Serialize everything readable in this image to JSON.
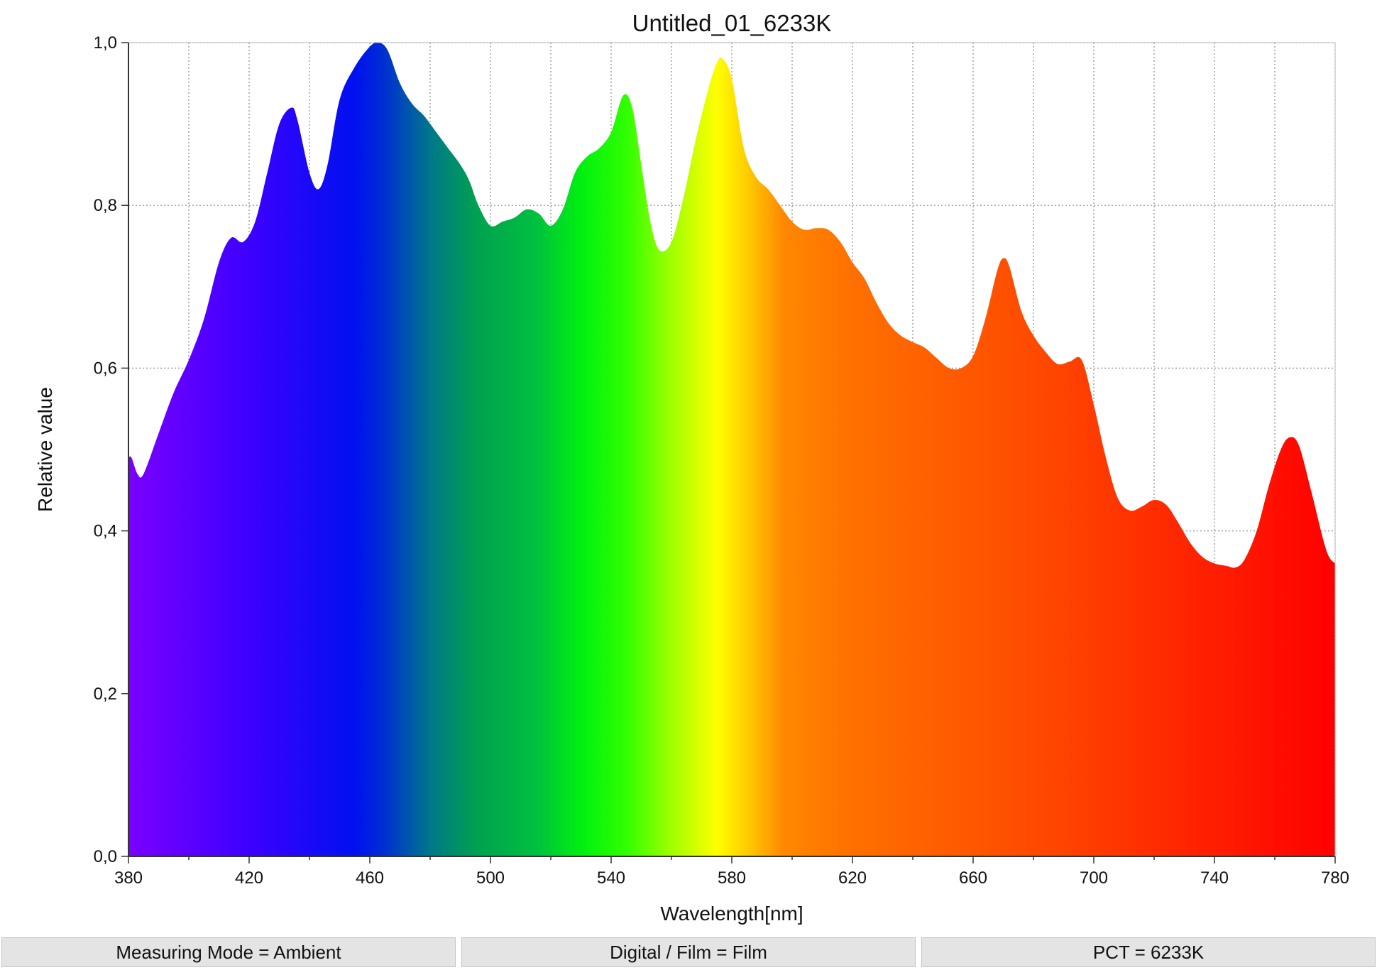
{
  "colors": {
    "gridline": "#8a8a8a",
    "axis": "#333333",
    "spectrum_stops": [
      {
        "nm": 380,
        "color": "#7a00ff"
      },
      {
        "nm": 420,
        "color": "#3d00ff"
      },
      {
        "nm": 455,
        "color": "#0010f0"
      },
      {
        "nm": 465,
        "color": "#0030d0"
      },
      {
        "nm": 480,
        "color": "#00788a"
      },
      {
        "nm": 495,
        "color": "#00a050"
      },
      {
        "nm": 515,
        "color": "#00c040"
      },
      {
        "nm": 530,
        "color": "#00f010"
      },
      {
        "nm": 545,
        "color": "#30ff00"
      },
      {
        "nm": 560,
        "color": "#a0ff00"
      },
      {
        "nm": 575,
        "color": "#ffff00"
      },
      {
        "nm": 585,
        "color": "#ffcc00"
      },
      {
        "nm": 597,
        "color": "#ff8800"
      },
      {
        "nm": 620,
        "color": "#ff7000"
      },
      {
        "nm": 680,
        "color": "#ff4a00"
      },
      {
        "nm": 740,
        "color": "#ff1e00"
      },
      {
        "nm": 780,
        "color": "#ff0000"
      }
    ]
  },
  "chart_data": {
    "type": "area",
    "title": "Untitled_01_6233K",
    "xlabel": "Wavelength[nm]",
    "ylabel": "Relative value",
    "xlim": [
      380,
      780
    ],
    "ylim": [
      0,
      1.0
    ],
    "grid": true,
    "x_ticks": [
      "380",
      "420",
      "460",
      "500",
      "540",
      "580",
      "620",
      "660",
      "700",
      "740",
      "780"
    ],
    "y_ticks": [
      "0,0",
      "0,2",
      "0,4",
      "0,6",
      "0,8",
      "1,0"
    ],
    "series": [
      {
        "points": [
          [
            380,
            0.49
          ],
          [
            381,
            0.49
          ],
          [
            383,
            0.47
          ],
          [
            385,
            0.47
          ],
          [
            390,
            0.52
          ],
          [
            395,
            0.57
          ],
          [
            400,
            0.61
          ],
          [
            405,
            0.66
          ],
          [
            410,
            0.73
          ],
          [
            414,
            0.76
          ],
          [
            418,
            0.755
          ],
          [
            422,
            0.78
          ],
          [
            426,
            0.84
          ],
          [
            430,
            0.9
          ],
          [
            434,
            0.92
          ],
          [
            436,
            0.905
          ],
          [
            440,
            0.84
          ],
          [
            443,
            0.82
          ],
          [
            446,
            0.85
          ],
          [
            450,
            0.93
          ],
          [
            455,
            0.97
          ],
          [
            460,
            0.995
          ],
          [
            463,
            1.0
          ],
          [
            466,
            0.99
          ],
          [
            470,
            0.95
          ],
          [
            474,
            0.925
          ],
          [
            478,
            0.91
          ],
          [
            482,
            0.89
          ],
          [
            486,
            0.87
          ],
          [
            490,
            0.85
          ],
          [
            493,
            0.83
          ],
          [
            496,
            0.8
          ],
          [
            500,
            0.775
          ],
          [
            504,
            0.78
          ],
          [
            508,
            0.785
          ],
          [
            512,
            0.795
          ],
          [
            516,
            0.79
          ],
          [
            520,
            0.775
          ],
          [
            524,
            0.795
          ],
          [
            528,
            0.84
          ],
          [
            532,
            0.86
          ],
          [
            536,
            0.87
          ],
          [
            540,
            0.89
          ],
          [
            544,
            0.935
          ],
          [
            547,
            0.92
          ],
          [
            550,
            0.85
          ],
          [
            553,
            0.78
          ],
          [
            556,
            0.745
          ],
          [
            560,
            0.755
          ],
          [
            564,
            0.81
          ],
          [
            568,
            0.88
          ],
          [
            572,
            0.94
          ],
          [
            575,
            0.975
          ],
          [
            577,
            0.98
          ],
          [
            580,
            0.955
          ],
          [
            584,
            0.87
          ],
          [
            588,
            0.835
          ],
          [
            592,
            0.82
          ],
          [
            596,
            0.8
          ],
          [
            600,
            0.78
          ],
          [
            604,
            0.77
          ],
          [
            608,
            0.772
          ],
          [
            612,
            0.77
          ],
          [
            616,
            0.755
          ],
          [
            620,
            0.73
          ],
          [
            624,
            0.71
          ],
          [
            628,
            0.68
          ],
          [
            632,
            0.655
          ],
          [
            636,
            0.64
          ],
          [
            640,
            0.632
          ],
          [
            644,
            0.625
          ],
          [
            648,
            0.612
          ],
          [
            652,
            0.6
          ],
          [
            656,
            0.6
          ],
          [
            660,
            0.615
          ],
          [
            664,
            0.66
          ],
          [
            668,
            0.72
          ],
          [
            670,
            0.735
          ],
          [
            672,
            0.725
          ],
          [
            676,
            0.67
          ],
          [
            680,
            0.64
          ],
          [
            684,
            0.62
          ],
          [
            688,
            0.605
          ],
          [
            692,
            0.608
          ],
          [
            696,
            0.61
          ],
          [
            700,
            0.555
          ],
          [
            704,
            0.49
          ],
          [
            708,
            0.44
          ],
          [
            712,
            0.425
          ],
          [
            716,
            0.43
          ],
          [
            720,
            0.438
          ],
          [
            724,
            0.432
          ],
          [
            728,
            0.41
          ],
          [
            732,
            0.385
          ],
          [
            736,
            0.368
          ],
          [
            740,
            0.36
          ],
          [
            744,
            0.357
          ],
          [
            747,
            0.355
          ],
          [
            750,
            0.365
          ],
          [
            754,
            0.4
          ],
          [
            758,
            0.455
          ],
          [
            762,
            0.5
          ],
          [
            765,
            0.515
          ],
          [
            768,
            0.505
          ],
          [
            772,
            0.45
          ],
          [
            776,
            0.39
          ],
          [
            778,
            0.368
          ],
          [
            780,
            0.36
          ]
        ]
      }
    ]
  },
  "status_bar": {
    "measuring_mode": "Measuring Mode = Ambient",
    "digital_film": "Digital / Film = Film",
    "pct": "PCT = 6233K"
  }
}
